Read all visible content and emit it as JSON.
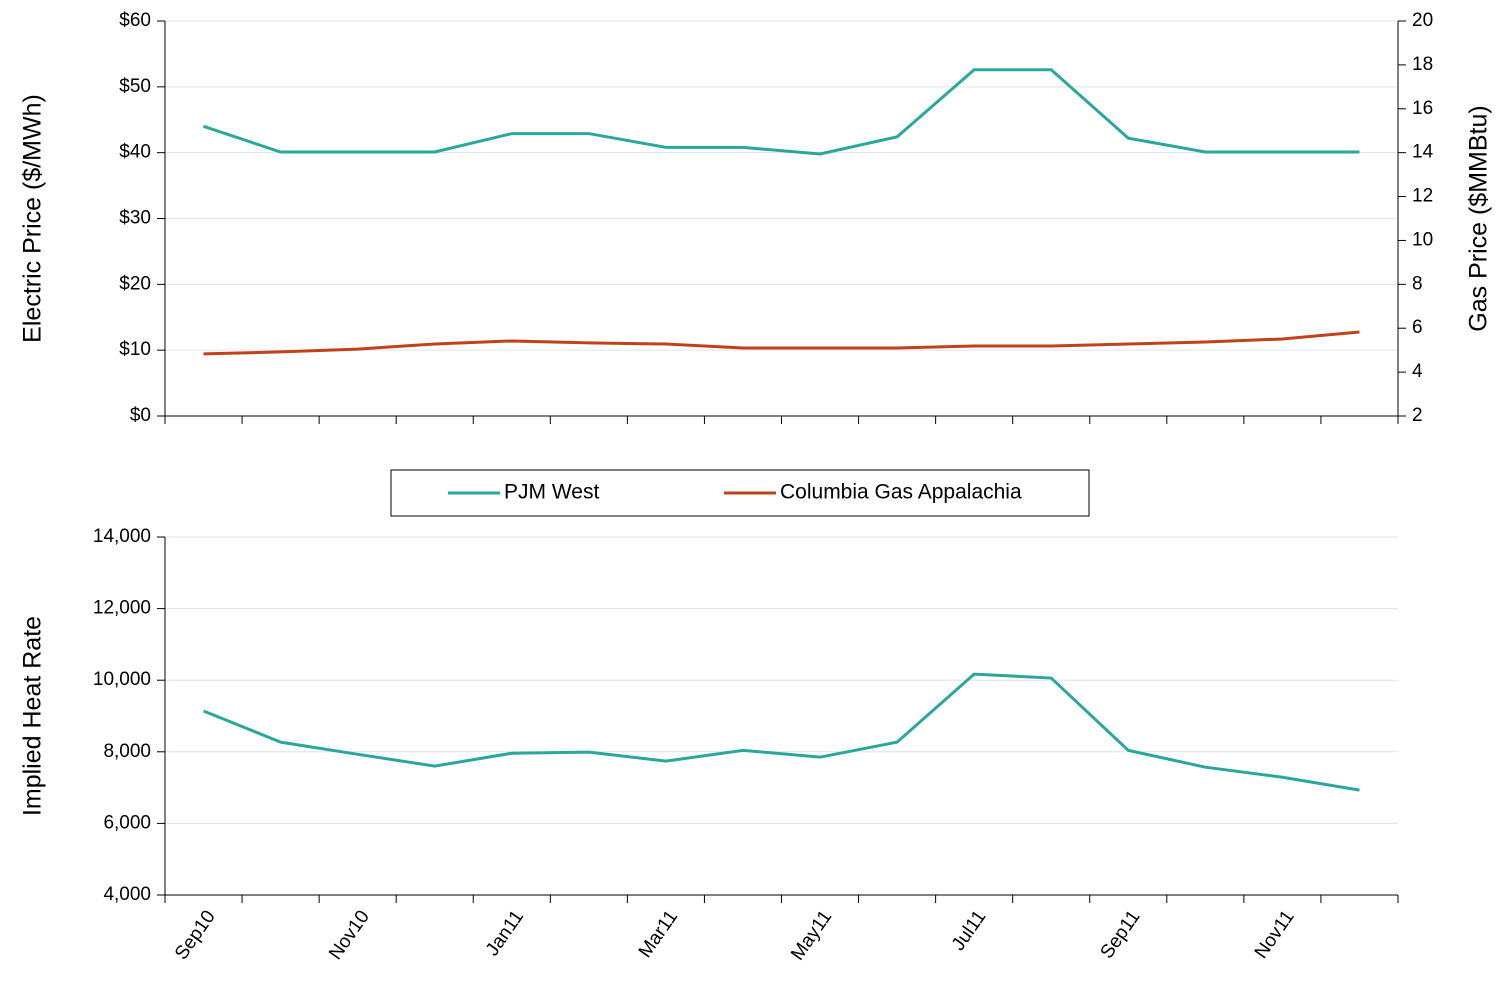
{
  "chart_data": [
    {
      "type": "line",
      "y_label": "Electric Price ($/MWh)",
      "y2_label": "Gas Price ($MMBtu)",
      "series": [
        {
          "name": "PJM West",
          "color": "#2aa79b",
          "values": [
            44,
            40.1,
            40.1,
            40.1,
            42.9,
            42.9,
            40.8,
            40.8,
            39.8,
            42.4,
            52.6,
            52.6,
            42.2,
            40.1,
            40.1,
            40.1
          ]
        },
        {
          "name": "Columbia Gas Appalachia",
          "color": "#c0421a",
          "axis": "y2",
          "values": [
            4.83,
            4.92,
            5.05,
            5.28,
            5.42,
            5.33,
            5.28,
            5.1,
            5.1,
            5.1,
            5.19,
            5.19,
            5.28,
            5.37,
            5.51,
            5.83
          ]
        }
      ],
      "ylim": [
        0,
        60
      ],
      "yticks": [
        {
          "value": 0,
          "label": "$0"
        },
        {
          "value": 10,
          "label": "$10"
        },
        {
          "value": 20,
          "label": "$20"
        },
        {
          "value": 30,
          "label": "$30"
        },
        {
          "value": 40,
          "label": "$40"
        },
        {
          "value": 50,
          "label": "$50"
        },
        {
          "value": 60,
          "label": "$60"
        }
      ],
      "y2lim": [
        2,
        20
      ],
      "y2ticks": [
        2,
        4,
        6,
        8,
        10,
        12,
        14,
        16,
        18,
        20
      ],
      "grid": true,
      "legend": "bottom"
    },
    {
      "type": "line",
      "y_label": "Implied Heat Rate",
      "categories": [
        "Sep10",
        null,
        "Nov10",
        null,
        "Jan11",
        null,
        "Mar11",
        null,
        "May11",
        null,
        "Jul11",
        null,
        "Sep11",
        null,
        "Nov11",
        null
      ],
      "series": [
        {
          "color": "#2aa79b",
          "values": [
            9140,
            8270,
            7930,
            7600,
            7960,
            7990,
            7740,
            8040,
            7850,
            8270,
            10170,
            10060,
            8040,
            7570,
            7290,
            6930
          ]
        }
      ],
      "ylim": [
        4000,
        14000
      ],
      "yticks": [
        {
          "value": 4000,
          "label": "4,000"
        },
        {
          "value": 6000,
          "label": "6,000"
        },
        {
          "value": 8000,
          "label": "8,000"
        },
        {
          "value": 10000,
          "label": "10,000"
        },
        {
          "value": 12000,
          "label": "12,000"
        },
        {
          "value": 14000,
          "label": "14,000"
        }
      ],
      "grid": true
    }
  ]
}
